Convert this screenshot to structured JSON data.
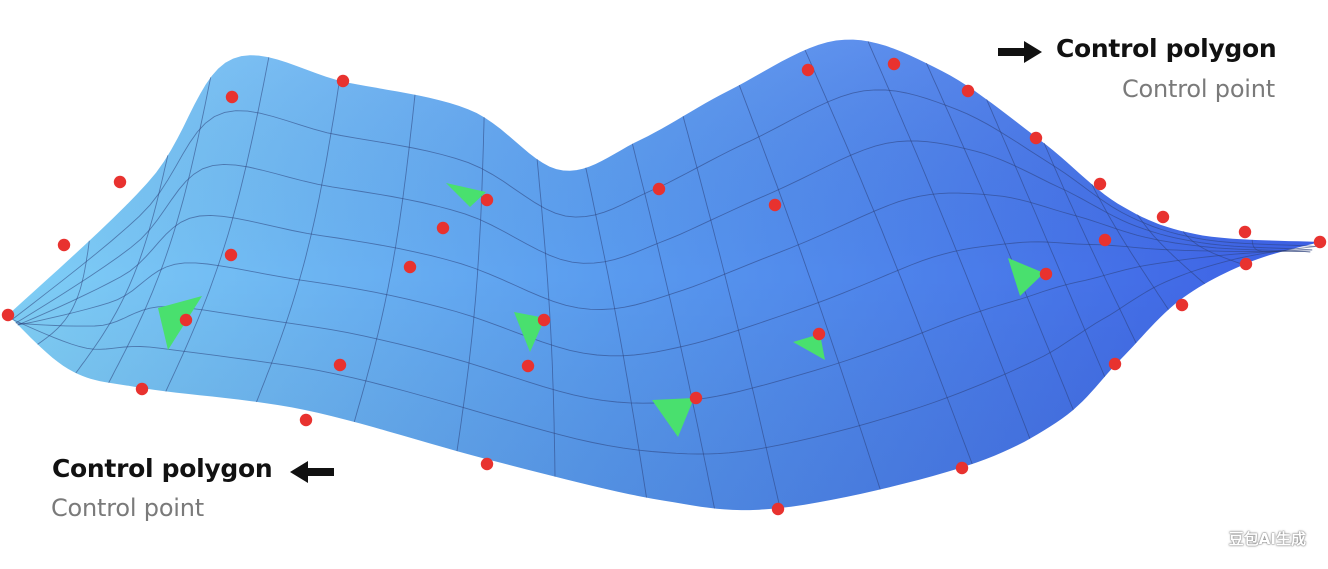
{
  "legend_top_right": {
    "title": "Control polygon",
    "subtitle": "Control point"
  },
  "legend_bottom_left": {
    "title": "Control polygon",
    "subtitle": "Control point"
  },
  "watermark": "豆包AI生成",
  "colors": {
    "surface_light": "#7ccbf5",
    "surface_dark": "#3f63e6",
    "grid_line": "#2b3f7a",
    "control_point": "#e8322f",
    "triangle": "#49e06e",
    "arrow": "#111111",
    "subtitle": "#7a7a7a"
  },
  "icons": [
    "arrow-right-icon",
    "arrow-left-icon"
  ]
}
